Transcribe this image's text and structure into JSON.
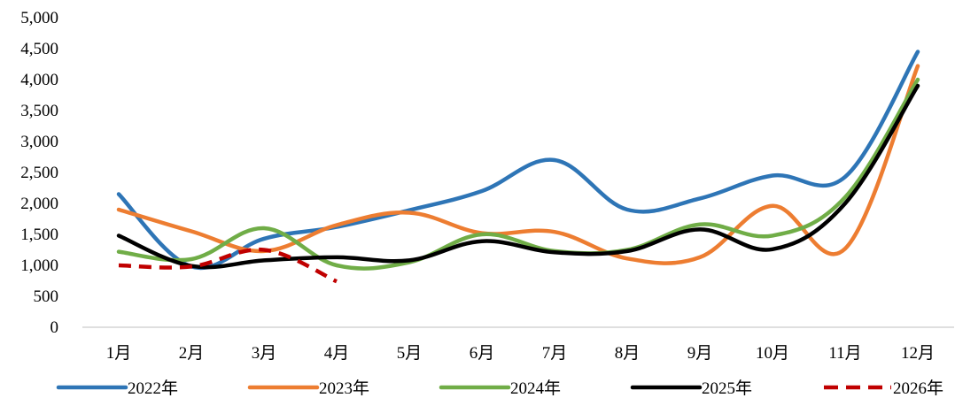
{
  "chart_data": {
    "type": "line",
    "categories": [
      "1月",
      "2月",
      "3月",
      "4月",
      "5月",
      "6月",
      "7月",
      "8月",
      "9月",
      "10月",
      "11月",
      "12月"
    ],
    "ylim": [
      0,
      5000
    ],
    "yticks": [
      0,
      500,
      1000,
      1500,
      2000,
      2500,
      3000,
      3500,
      4000,
      4500,
      5000
    ],
    "ytick_labels": [
      "0",
      "500",
      "1,000",
      "1,500",
      "2,000",
      "2,500",
      "3,000",
      "3,500",
      "4,000",
      "4,500",
      "5,000"
    ],
    "grid": false,
    "legend_position": "bottom",
    "series": [
      {
        "name": "2022年",
        "color": "#2E75B6",
        "dashed": false,
        "values": [
          2150,
          980,
          1430,
          1620,
          1890,
          2200,
          2700,
          1900,
          2080,
          2450,
          2430,
          4450
        ]
      },
      {
        "name": "2023年",
        "color": "#ED7D31",
        "dashed": false,
        "values": [
          1900,
          1550,
          1230,
          1650,
          1850,
          1520,
          1540,
          1110,
          1130,
          1960,
          1270,
          4220
        ]
      },
      {
        "name": "2024年",
        "color": "#70AD47",
        "dashed": false,
        "values": [
          1220,
          1100,
          1600,
          1000,
          1050,
          1500,
          1230,
          1250,
          1660,
          1480,
          2100,
          4000
        ]
      },
      {
        "name": "2025年",
        "color": "#000000",
        "dashed": false,
        "values": [
          1480,
          990,
          1080,
          1130,
          1080,
          1390,
          1210,
          1230,
          1580,
          1260,
          2000,
          3900
        ]
      },
      {
        "name": "2026年",
        "color": "#C00000",
        "dashed": true,
        "values": [
          1000,
          980,
          1250,
          740,
          null,
          null,
          null,
          null,
          null,
          null,
          null,
          null
        ]
      }
    ]
  }
}
